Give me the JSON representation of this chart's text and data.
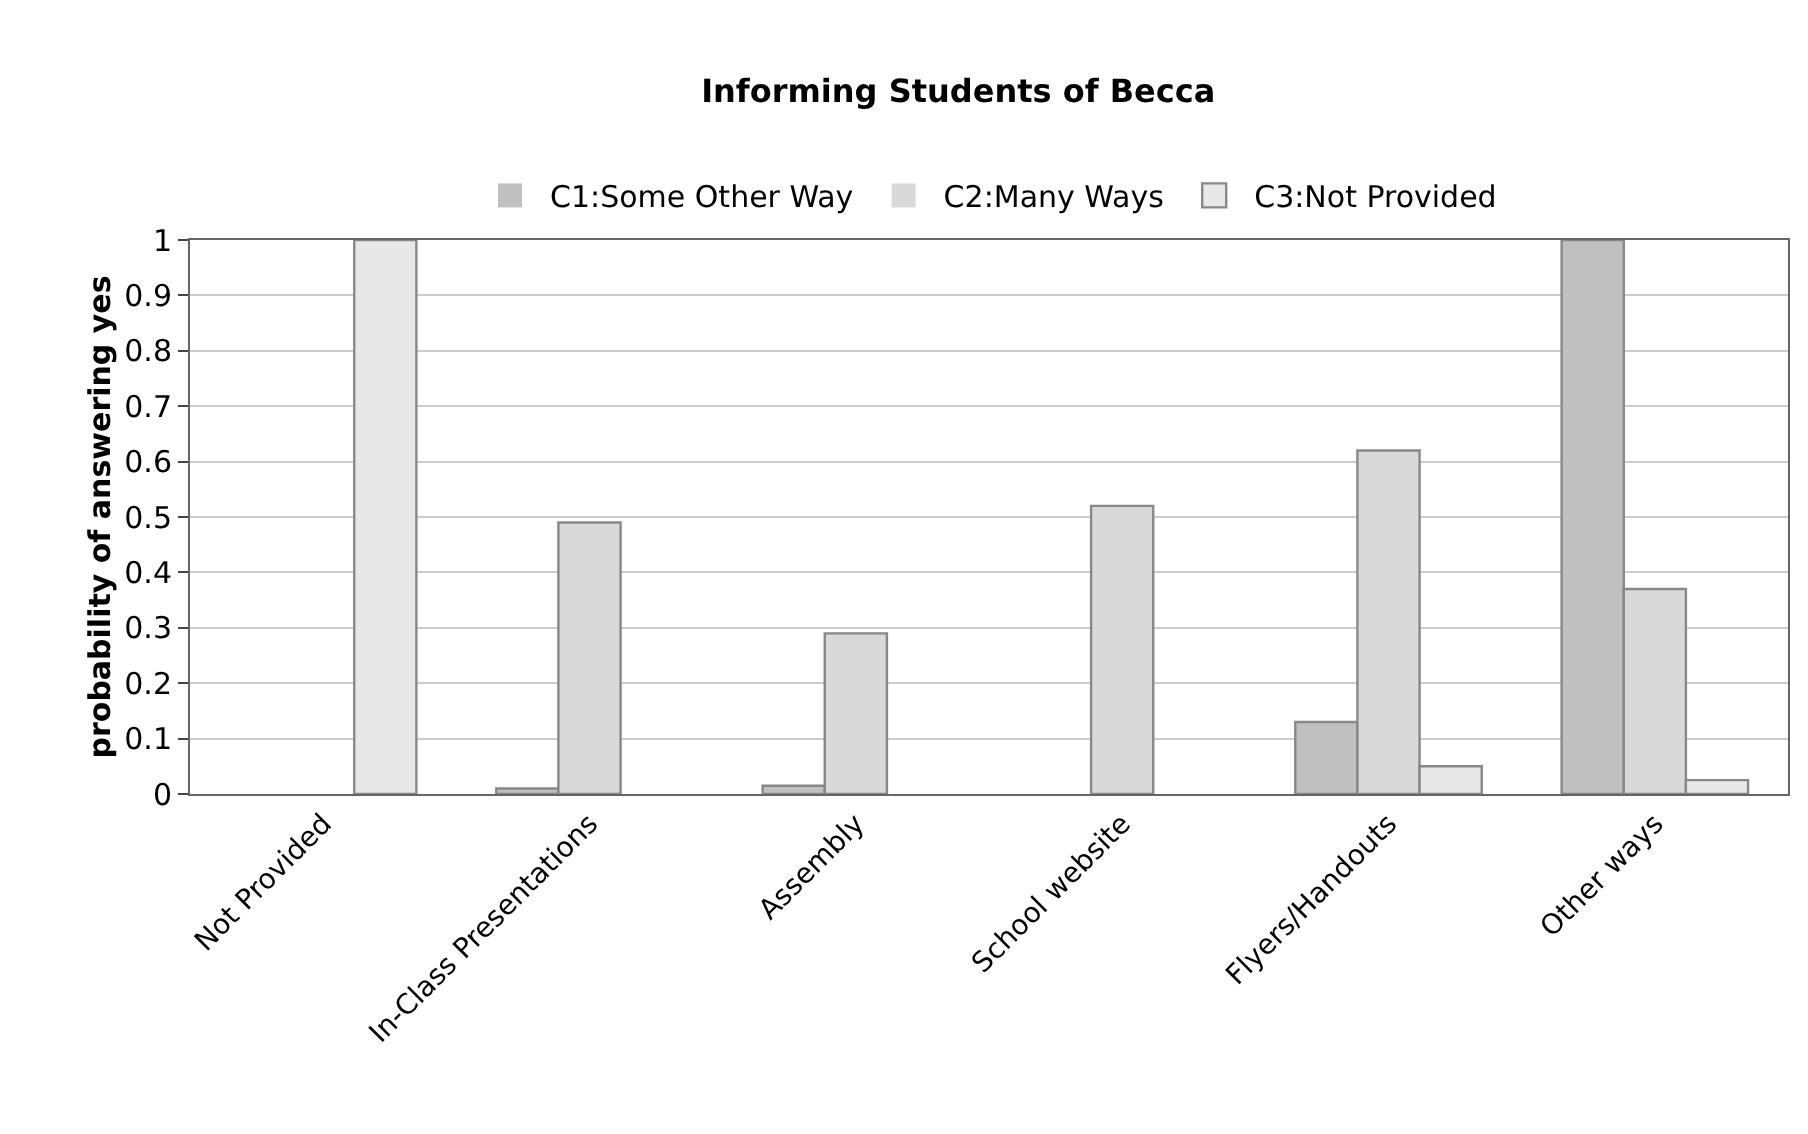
{
  "chart_data": {
    "type": "bar",
    "title": "Informing Students of Becca",
    "ylabel": "probability of answering yes",
    "categories": [
      "Not Provided",
      "In-Class Presentations",
      "Assembly",
      "School website",
      "Flyers/Handouts",
      "Other ways"
    ],
    "series": [
      {
        "name": "C1:Some Other Way",
        "color": "#c0c0c0",
        "values": [
          0,
          0.01,
          0.015,
          0,
          0.13,
          1
        ]
      },
      {
        "name": "C2:Many Ways",
        "color": "#d9d9d9",
        "values": [
          0,
          0.49,
          0.29,
          0.52,
          0.62,
          0.37
        ]
      },
      {
        "name": "C3:Not Provided",
        "color": "#e8e8e8",
        "values": [
          1,
          0,
          0,
          0,
          0.05,
          0.025
        ]
      }
    ],
    "ylim": [
      0,
      1
    ],
    "yticks": [
      0,
      0.1,
      0.2,
      0.3,
      0.4,
      0.5,
      0.6,
      0.7,
      0.8,
      0.9,
      1
    ],
    "grid": "y",
    "legend": "top"
  }
}
